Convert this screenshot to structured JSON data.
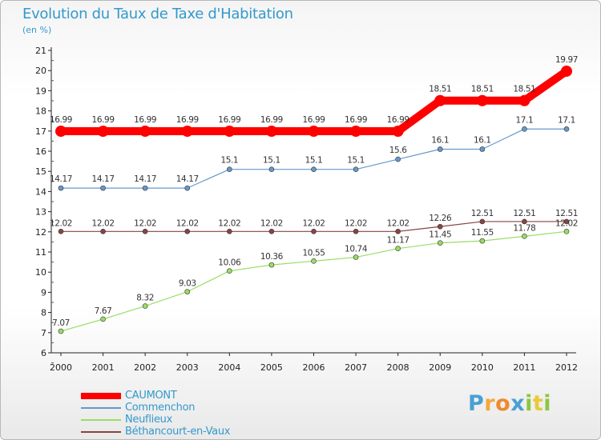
{
  "chart_data": {
    "type": "line",
    "title": "Evolution du Taux de Taxe d'Habitation",
    "subtitle": "(en %)",
    "x": [
      "2000",
      "2001",
      "2002",
      "2003",
      "2004",
      "2005",
      "2006",
      "2007",
      "2008",
      "2009",
      "2010",
      "2011",
      "2012"
    ],
    "ylim": [
      6,
      21
    ],
    "yticks": [
      "6",
      "7",
      "8",
      "9",
      "10",
      "11",
      "12",
      "13",
      "14",
      "15",
      "16",
      "17",
      "18",
      "19",
      "20",
      "21"
    ],
    "grid": false,
    "legend_position": "bottom-left",
    "series": [
      {
        "name": "CAUMONT",
        "color": "#ff0000",
        "values": [
          16.99,
          16.99,
          16.99,
          16.99,
          16.99,
          16.99,
          16.99,
          16.99,
          16.99,
          18.51,
          18.51,
          18.51,
          19.97
        ],
        "labels": [
          "16.99",
          "16.99",
          "16.99",
          "16.99",
          "16.99",
          "16.99",
          "16.99",
          "16.99",
          "16.99",
          "18.51",
          "18.51",
          "18.51",
          "19.97"
        ]
      },
      {
        "name": "Commenchon",
        "color": "#6699cc",
        "values": [
          14.17,
          14.17,
          14.17,
          14.17,
          15.1,
          15.1,
          15.1,
          15.1,
          15.6,
          16.1,
          16.1,
          17.1,
          17.1
        ],
        "labels": [
          "14.17",
          "14.17",
          "14.17",
          "14.17",
          "15.1",
          "15.1",
          "15.1",
          "15.1",
          "15.6",
          "16.1",
          "16.1",
          "17.1",
          "17.1"
        ]
      },
      {
        "name": "Neuflieux",
        "color": "#99dd66",
        "values": [
          7.07,
          7.67,
          8.32,
          9.03,
          10.06,
          10.36,
          10.55,
          10.74,
          11.17,
          11.45,
          11.55,
          11.78,
          12.02
        ],
        "labels": [
          "7.07",
          "7.67",
          "8.32",
          "9.03",
          "10.06",
          "10.36",
          "10.55",
          "10.74",
          "11.17",
          "11.45",
          "11.55",
          "11.78",
          "12.02"
        ]
      },
      {
        "name": "Béthancourt-en-Vaux",
        "color": "#884444",
        "values": [
          12.02,
          12.02,
          12.02,
          12.02,
          12.02,
          12.02,
          12.02,
          12.02,
          12.02,
          12.26,
          12.51,
          12.51,
          12.51
        ],
        "labels": [
          "12.02",
          "12.02",
          "12.02",
          "12.02",
          "12.02",
          "12.02",
          "12.02",
          "12.02",
          "12.02",
          "12.26",
          "12.51",
          "12.51",
          "12.51"
        ]
      }
    ]
  },
  "logo": {
    "letters": [
      "P",
      "r",
      "o",
      "x",
      "i",
      "t",
      "i"
    ],
    "colors": [
      "#4a9fd5",
      "#f4a83a",
      "#f08a2a",
      "#4a9fd5",
      "#8cc63f",
      "#e8c93a",
      "#8cc63f"
    ]
  }
}
